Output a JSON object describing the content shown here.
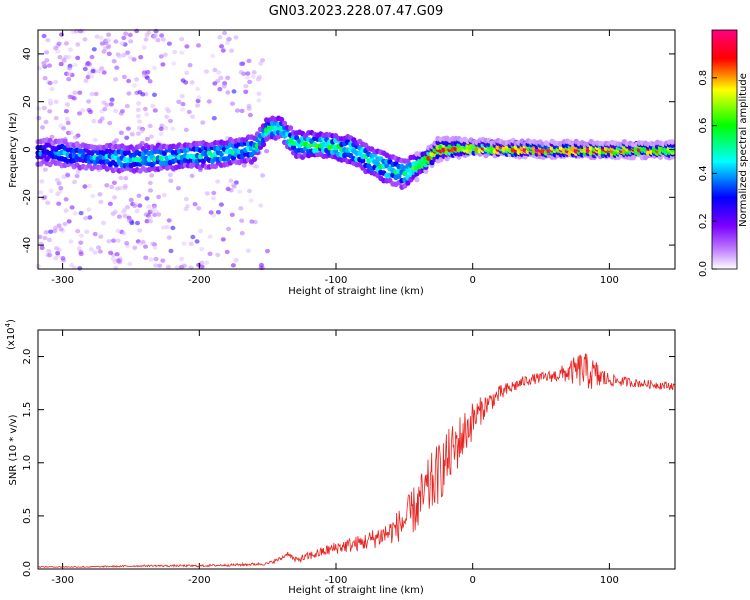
{
  "figure_title": "GN03.2023.228.07.47.G09",
  "colors": {
    "background": "#ffffff",
    "axis": "#000000",
    "snr_line": "#e8231f"
  },
  "chart_data": [
    {
      "type": "heatmap",
      "name": "spectrogram",
      "xlabel": "Height of straight line (km)",
      "ylabel": "Frequency (Hz)",
      "xlim": [
        -318,
        148
      ],
      "ylim": [
        -50,
        50
      ],
      "xticks": [
        -300,
        -200,
        -100,
        0,
        100
      ],
      "yticks": [
        -40,
        -20,
        0,
        20,
        40
      ],
      "colorbar": {
        "label": "Normalized spectral amplitude",
        "range": [
          0.0,
          1.0
        ],
        "ticks": [
          "0.0",
          "0.2",
          "0.4",
          "0.6",
          "0.8"
        ],
        "colormap": [
          "#ffffff",
          "#7b00ff",
          "#0000ff",
          "#00ffff",
          "#00ff00",
          "#ffff00",
          "#ff0000",
          "#ff007f"
        ]
      },
      "ridge": [
        {
          "x": -310,
          "f": -1,
          "amp": 0.35,
          "width": 5
        },
        {
          "x": -280,
          "f": -3,
          "amp": 0.4,
          "width": 5
        },
        {
          "x": -250,
          "f": -4,
          "amp": 0.45,
          "width": 5
        },
        {
          "x": -220,
          "f": -3,
          "amp": 0.45,
          "width": 5
        },
        {
          "x": -190,
          "f": -2,
          "amp": 0.45,
          "width": 5
        },
        {
          "x": -165,
          "f": 0,
          "amp": 0.45,
          "width": 5
        },
        {
          "x": -160,
          "f": 0,
          "amp": 0.45,
          "width": 5
        },
        {
          "x": -150,
          "f": 9,
          "amp": 0.55,
          "width": 4
        },
        {
          "x": -140,
          "f": 9,
          "amp": 0.5,
          "width": 4
        },
        {
          "x": -130,
          "f": 2,
          "amp": 0.5,
          "width": 5
        },
        {
          "x": -110,
          "f": 2,
          "amp": 0.55,
          "width": 5
        },
        {
          "x": -90,
          "f": 0,
          "amp": 0.5,
          "width": 5
        },
        {
          "x": -70,
          "f": -6,
          "amp": 0.5,
          "width": 6
        },
        {
          "x": -50,
          "f": -10,
          "amp": 0.45,
          "width": 6
        },
        {
          "x": -38,
          "f": -6,
          "amp": 0.7,
          "width": 3
        },
        {
          "x": -25,
          "f": 0,
          "amp": 0.8,
          "width": 3
        },
        {
          "x": 0,
          "f": 1,
          "amp": 0.85,
          "width": 2
        },
        {
          "x": 50,
          "f": 0,
          "amp": 0.9,
          "width": 2
        },
        {
          "x": 100,
          "f": 0,
          "amp": 0.9,
          "width": 2
        },
        {
          "x": 148,
          "f": 0,
          "amp": 0.85,
          "width": 2
        }
      ]
    },
    {
      "type": "line",
      "name": "snr",
      "xlabel": "Height of straight line (km)",
      "ylabel": "SNR (10 * v/v)",
      "y_multiplier": "(x10",
      "y_exponent": "4",
      "y_multiplier_close": ")",
      "xlim": [
        -318,
        148
      ],
      "ylim": [
        0,
        2.25
      ],
      "xticks": [
        -300,
        -200,
        -100,
        0,
        100
      ],
      "yticks": [
        "0.0",
        "0.5",
        "1.0",
        "1.5",
        "2.0"
      ],
      "series": [
        {
          "name": "SNR",
          "color": "#e8231f",
          "x": [
            -318,
            -280,
            -240,
            -200,
            -170,
            -150,
            -140,
            -135,
            -130,
            -120,
            -100,
            -80,
            -60,
            -50,
            -40,
            -30,
            -20,
            -10,
            0,
            10,
            20,
            30,
            40,
            50,
            60,
            70,
            80,
            90,
            100,
            120,
            148
          ],
          "y": [
            0.02,
            0.02,
            0.03,
            0.03,
            0.04,
            0.05,
            0.1,
            0.15,
            0.08,
            0.12,
            0.2,
            0.25,
            0.35,
            0.45,
            0.6,
            0.8,
            1.0,
            1.2,
            1.4,
            1.55,
            1.65,
            1.72,
            1.78,
            1.8,
            1.82,
            1.85,
            1.88,
            1.82,
            1.78,
            1.75,
            1.72
          ],
          "noise": [
            0.005,
            0.006,
            0.008,
            0.01,
            0.012,
            0.014,
            0.02,
            0.02,
            0.03,
            0.04,
            0.06,
            0.08,
            0.12,
            0.18,
            0.25,
            0.3,
            0.28,
            0.25,
            0.18,
            0.1,
            0.08,
            0.06,
            0.05,
            0.05,
            0.06,
            0.1,
            0.18,
            0.15,
            0.06,
            0.04,
            0.04
          ]
        }
      ]
    }
  ]
}
